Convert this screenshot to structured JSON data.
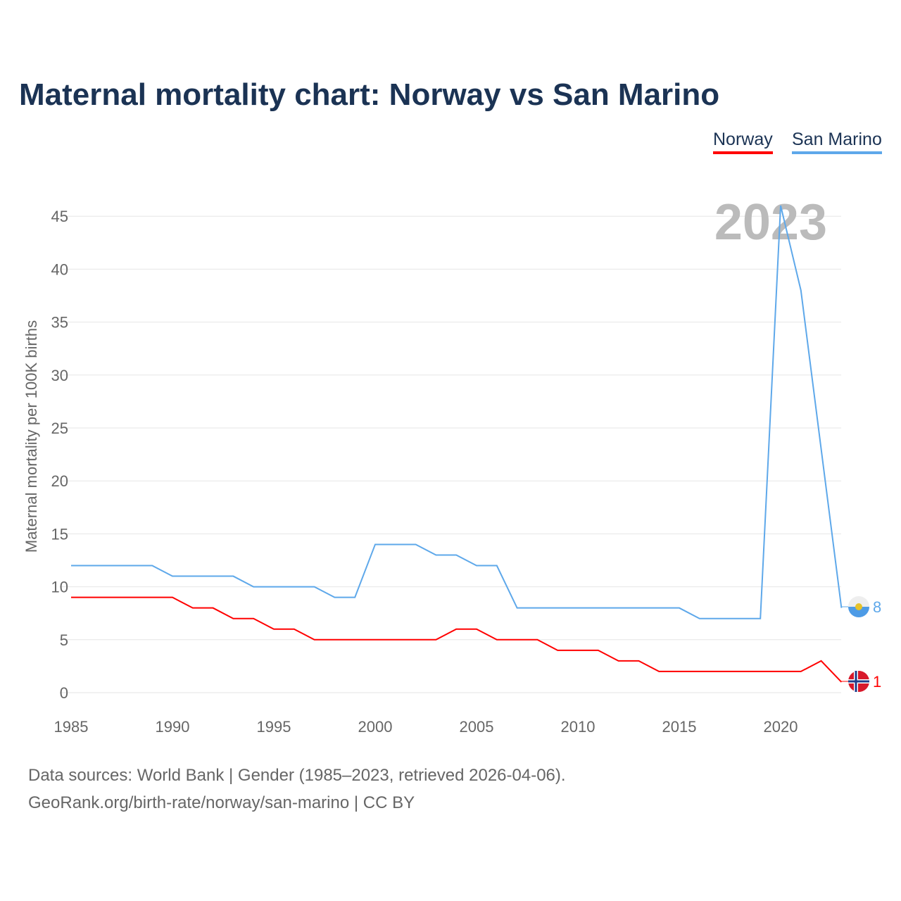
{
  "chart_data": {
    "type": "line",
    "title": "Maternal mortality chart: Norway vs San Marino",
    "ylabel": "Maternal mortality per 100K births",
    "xlabel": "",
    "xlim": [
      1985,
      2023
    ],
    "ylim": [
      0,
      45
    ],
    "yticks": [
      0,
      5,
      10,
      15,
      20,
      25,
      30,
      35,
      40,
      45
    ],
    "xticks": [
      1985,
      1990,
      1995,
      2000,
      2005,
      2010,
      2015,
      2020
    ],
    "year_label": "2023",
    "x": [
      1985,
      1986,
      1987,
      1988,
      1989,
      1990,
      1991,
      1992,
      1993,
      1994,
      1995,
      1996,
      1997,
      1998,
      1999,
      2000,
      2001,
      2002,
      2003,
      2004,
      2005,
      2006,
      2007,
      2008,
      2009,
      2010,
      2011,
      2012,
      2013,
      2014,
      2015,
      2016,
      2017,
      2018,
      2019,
      2020,
      2021,
      2022,
      2023
    ],
    "series": [
      {
        "name": "Norway",
        "color": "#ff0000",
        "end_label": "1",
        "values": [
          9,
          9,
          9,
          9,
          9,
          9,
          8,
          8,
          7,
          7,
          6,
          6,
          5,
          5,
          5,
          5,
          5,
          5,
          5,
          6,
          6,
          5,
          5,
          5,
          4,
          4,
          4,
          3,
          3,
          2,
          2,
          2,
          2,
          2,
          2,
          2,
          2,
          3,
          1
        ]
      },
      {
        "name": "San Marino",
        "color": "#5ea8ea",
        "end_label": "8",
        "values": [
          12,
          12,
          12,
          12,
          12,
          11,
          11,
          11,
          11,
          10,
          10,
          10,
          10,
          9,
          9,
          14,
          14,
          14,
          13,
          13,
          12,
          12,
          8,
          8,
          8,
          8,
          8,
          8,
          8,
          8,
          8,
          7,
          7,
          7,
          7,
          46,
          38,
          23,
          8
        ]
      }
    ],
    "legend": "top-right",
    "grid": true
  },
  "footer": {
    "line1": "Data sources: World Bank | Gender (1985–2023, retrieved 2026-04-06).",
    "line2": "GeoRank.org/birth-rate/norway/san-marino | CC BY"
  }
}
